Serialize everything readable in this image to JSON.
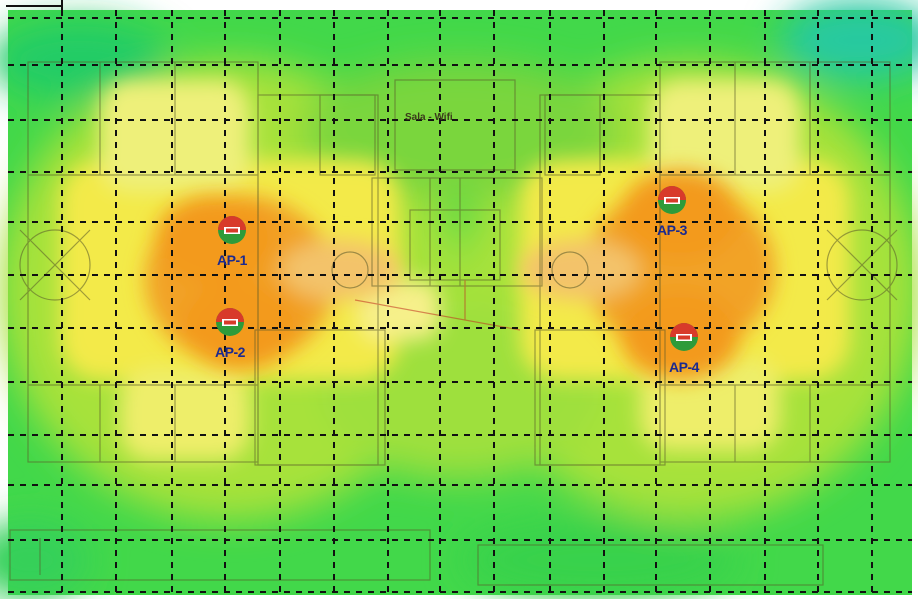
{
  "access_points": [
    {
      "label": "AP-1"
    },
    {
      "label": "AP-2"
    },
    {
      "label": "AP-3"
    },
    {
      "label": "AP-4"
    }
  ],
  "center_label": "Sala - Wifi",
  "colors": {
    "strong_signal": "#f2a326",
    "good_signal": "#f7e74a",
    "medium_signal": "#b9e63a",
    "weak_signal": "#3fdc4c",
    "grid_line": "#111111",
    "ap_red": "#d83a2a",
    "ap_green": "#2e9b3a",
    "label_blue": "#1b2a8f"
  },
  "icons": {
    "access_point": "access-point-icon"
  }
}
